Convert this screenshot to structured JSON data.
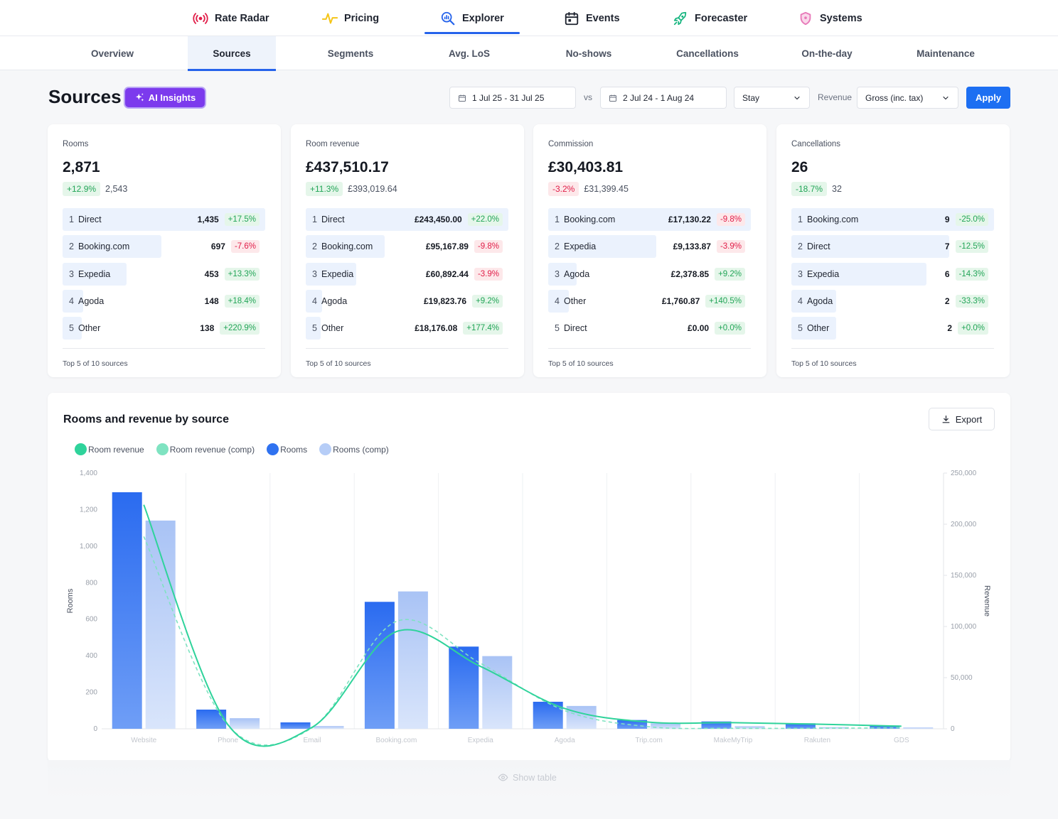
{
  "topnav": [
    {
      "label": "Rate Radar",
      "icon": "radar-icon",
      "active": false
    },
    {
      "label": "Pricing",
      "icon": "pulse-icon",
      "active": false
    },
    {
      "label": "Explorer",
      "icon": "explorer-icon",
      "active": true
    },
    {
      "label": "Events",
      "icon": "calendar-icon",
      "active": false
    },
    {
      "label": "Forecaster",
      "icon": "rocket-icon",
      "active": false
    },
    {
      "label": "Systems",
      "icon": "shield-icon",
      "active": false
    }
  ],
  "subnav": [
    "Overview",
    "Sources",
    "Segments",
    "Avg. LoS",
    "No-shows",
    "Cancellations",
    "On-the-day",
    "Maintenance"
  ],
  "subnav_active": "Sources",
  "header": {
    "title": "Sources",
    "ai_label": "AI Insights",
    "date_range": "1 Jul 25 - 31 Jul 25",
    "vs": "vs",
    "comp_range": "2 Jul 24 - 1 Aug 24",
    "basis": "Stay",
    "revenue_label": "Revenue",
    "revenue_mode": "Gross (inc. tax)",
    "apply": "Apply"
  },
  "colors": {
    "accent": "#1d6ff2",
    "ai_purple": "#7c3aed",
    "positive": "#22a557",
    "negative": "#e11d48",
    "rooms": "#2f72f0",
    "rooms_comp": "#b6cdf7",
    "revenue": "#2fd39b",
    "revenue_comp": "#7fe3c1"
  },
  "cards": [
    {
      "label": "Rooms",
      "value": "2,871",
      "delta": "+12.9%",
      "delta_dir": "pos",
      "comp": "2,543",
      "rows": [
        {
          "rank": "1",
          "name": "Direct",
          "value": "1,435",
          "delta": "+17.5%",
          "dir": "pos",
          "share": 1.0
        },
        {
          "rank": "2",
          "name": "Booking.com",
          "value": "697",
          "delta": "-7.6%",
          "dir": "neg",
          "share": 0.486
        },
        {
          "rank": "3",
          "name": "Expedia",
          "value": "453",
          "delta": "+13.3%",
          "dir": "pos",
          "share": 0.316
        },
        {
          "rank": "4",
          "name": "Agoda",
          "value": "148",
          "delta": "+18.4%",
          "dir": "pos",
          "share": 0.103
        },
        {
          "rank": "5",
          "name": "Other",
          "value": "138",
          "delta": "+220.9%",
          "dir": "pos",
          "share": 0.096
        }
      ],
      "footer": "Top 5 of 10 sources"
    },
    {
      "label": "Room revenue",
      "value": "£437,510.17",
      "delta": "+11.3%",
      "delta_dir": "pos",
      "comp": "£393,019.64",
      "rows": [
        {
          "rank": "1",
          "name": "Direct",
          "value": "£243,450.00",
          "delta": "+22.0%",
          "dir": "pos",
          "share": 1.0
        },
        {
          "rank": "2",
          "name": "Booking.com",
          "value": "£95,167.89",
          "delta": "-9.8%",
          "dir": "neg",
          "share": 0.391
        },
        {
          "rank": "3",
          "name": "Expedia",
          "value": "£60,892.44",
          "delta": "-3.9%",
          "dir": "neg",
          "share": 0.25
        },
        {
          "rank": "4",
          "name": "Agoda",
          "value": "£19,823.76",
          "delta": "+9.2%",
          "dir": "pos",
          "share": 0.081
        },
        {
          "rank": "5",
          "name": "Other",
          "value": "£18,176.08",
          "delta": "+177.4%",
          "dir": "pos",
          "share": 0.075
        }
      ],
      "footer": "Top 5 of 10 sources"
    },
    {
      "label": "Commission",
      "value": "£30,403.81",
      "delta": "-3.2%",
      "delta_dir": "neg",
      "comp": "£31,399.45",
      "rows": [
        {
          "rank": "1",
          "name": "Booking.com",
          "value": "£17,130.22",
          "delta": "-9.8%",
          "dir": "neg",
          "share": 1.0
        },
        {
          "rank": "2",
          "name": "Expedia",
          "value": "£9,133.87",
          "delta": "-3.9%",
          "dir": "neg",
          "share": 0.533
        },
        {
          "rank": "3",
          "name": "Agoda",
          "value": "£2,378.85",
          "delta": "+9.2%",
          "dir": "pos",
          "share": 0.139
        },
        {
          "rank": "4",
          "name": "Other",
          "value": "£1,760.87",
          "delta": "+140.5%",
          "dir": "pos",
          "share": 0.103
        },
        {
          "rank": "5",
          "name": "Direct",
          "value": "£0.00",
          "delta": "+0.0%",
          "dir": "pos",
          "share": 0.0
        }
      ],
      "footer": "Top 5 of 10 sources"
    },
    {
      "label": "Cancellations",
      "value": "26",
      "delta": "-18.7%",
      "delta_dir": "pos",
      "comp": "32",
      "rows": [
        {
          "rank": "1",
          "name": "Booking.com",
          "value": "9",
          "delta": "-25.0%",
          "dir": "pos",
          "share": 1.0
        },
        {
          "rank": "2",
          "name": "Direct",
          "value": "7",
          "delta": "-12.5%",
          "dir": "pos",
          "share": 0.778
        },
        {
          "rank": "3",
          "name": "Expedia",
          "value": "6",
          "delta": "-14.3%",
          "dir": "pos",
          "share": 0.667
        },
        {
          "rank": "4",
          "name": "Agoda",
          "value": "2",
          "delta": "-33.3%",
          "dir": "pos",
          "share": 0.222
        },
        {
          "rank": "5",
          "name": "Other",
          "value": "2",
          "delta": "+0.0%",
          "dir": "pos",
          "share": 0.222
        }
      ],
      "footer": "Top 5 of 10 sources"
    }
  ],
  "chart_panel": {
    "title": "Rooms and revenue by source",
    "export": "Export",
    "show_table": "Show table"
  },
  "chart_data": {
    "type": "bar",
    "categories": [
      "Website",
      "Phone",
      "Email",
      "Booking.com",
      "Expedia",
      "Agoda",
      "Trip.com",
      "MakeMyTrip",
      "Rakuten",
      "GDS"
    ],
    "series": [
      {
        "name": "Rooms",
        "kind": "bar",
        "axis": "left",
        "values": [
          1295,
          105,
          35,
          695,
          450,
          148,
          48,
          40,
          30,
          18
        ]
      },
      {
        "name": "Rooms (comp)",
        "kind": "bar",
        "axis": "left",
        "values": [
          1140,
          58,
          15,
          752,
          398,
          125,
          30,
          14,
          9,
          7
        ]
      },
      {
        "name": "Room revenue",
        "kind": "line",
        "axis": "right",
        "values": [
          219000,
          4000,
          1500,
          95000,
          61000,
          19800,
          6500,
          6000,
          4500,
          2500
        ]
      },
      {
        "name": "Room revenue (comp)",
        "kind": "line",
        "axis": "right",
        "dashed": true,
        "values": [
          188000,
          3500,
          1000,
          105000,
          64000,
          17800,
          2000,
          500,
          500,
          1000
        ]
      }
    ],
    "ylabel": "Rooms",
    "y2label": "Revenue",
    "ylim": [
      0,
      1400
    ],
    "y2lim": [
      0,
      250000
    ],
    "yticks": [
      "0",
      "200",
      "400",
      "600",
      "800",
      "1,000",
      "1,200",
      "1,400"
    ],
    "y2ticks": [
      "0",
      "50,000",
      "100,000",
      "150,000",
      "200,000",
      "250,000"
    ],
    "grid": "vertical",
    "legend": "top-left"
  }
}
